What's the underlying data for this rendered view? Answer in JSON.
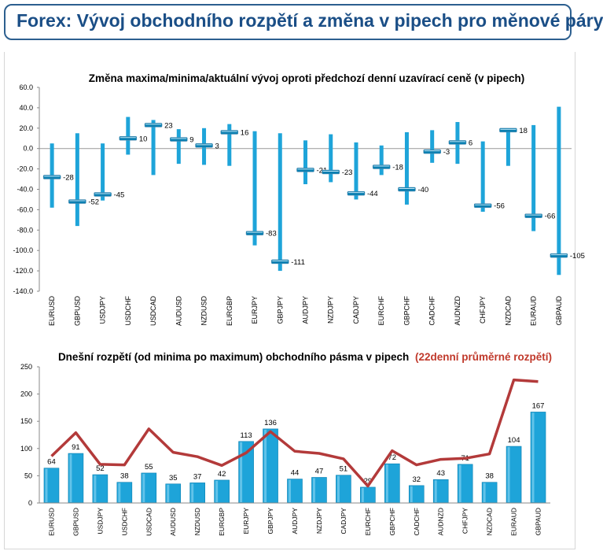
{
  "header": {
    "title": "Forex: Vývoj obchodního rozpětí a změna v pipech pro měnové páry"
  },
  "colors": {
    "header_border": "#2c5f8f",
    "header_text": "#1a4e86",
    "bar": "#1ea4d9",
    "bar_dark": "#0b7fb1",
    "line": "#b33a3a",
    "accent_red": "#c0392b"
  },
  "chart_data": [
    {
      "type": "floating-range",
      "title": "Změna maxima/minima/aktuální vývoj oproti předchozí denní uzavírací ceně (v pipech)",
      "categories": [
        "EURUSD",
        "GBPUSD",
        "USDJPY",
        "USDCHF",
        "USDCAD",
        "AUDUSD",
        "NZDUSD",
        "EURGBP",
        "EURJPY",
        "GBPJPY",
        "AUDJPY",
        "NZDJPY",
        "CADJPY",
        "EURCHF",
        "GBPCHF",
        "CADCHF",
        "AUDNZD",
        "CHFJPY",
        "NZDCAD",
        "EURAUD",
        "GBPAUD"
      ],
      "high": [
        5,
        15,
        5,
        31,
        28,
        19,
        20,
        24,
        17,
        15,
        8,
        14,
        6,
        3,
        16,
        18,
        26,
        7,
        19,
        23,
        41
      ],
      "low": [
        -58,
        -76,
        -51,
        -6,
        -26,
        -15,
        -16,
        -17,
        -95,
        -120,
        -35,
        -33,
        -50,
        -26,
        -55,
        -14,
        -15,
        -62,
        -17,
        -81,
        -124
      ],
      "current": [
        -28,
        -52,
        -45,
        10,
        23,
        9,
        3,
        16,
        -83,
        -111,
        -21,
        -23,
        -44,
        -18,
        -40,
        -3,
        6,
        -56,
        18,
        -66,
        -105
      ],
      "ylim": [
        -140,
        60
      ],
      "yticks": [
        "60.0",
        "40.0",
        "20.0",
        "0.0",
        "-20.0",
        "-40.0",
        "-60.0",
        "-80.0",
        "-100.0",
        "-120.0",
        "-140.0"
      ]
    },
    {
      "type": "bar+line",
      "title": "Dnešní rozpětí (od minima po maximum) obchodního pásma v pipech",
      "title_suffix": "(22denní průměrné rozpětí)",
      "categories": [
        "EURUSD",
        "GBPUSD",
        "USDJPY",
        "USDCHF",
        "USDCAD",
        "AUDUSD",
        "NZDUSD",
        "EURGBP",
        "EURJPY",
        "GBPJPY",
        "AUDJPY",
        "NZDJPY",
        "CADJPY",
        "EURCHF",
        "GBPCHF",
        "CADCHF",
        "AUDNZD",
        "CHFJPY",
        "NZDCAD",
        "EURAUD",
        "GBPAUD"
      ],
      "bars": [
        64,
        91,
        52,
        38,
        55,
        35,
        37,
        42,
        113,
        136,
        44,
        47,
        51,
        29,
        72,
        32,
        43,
        71,
        38,
        104,
        167
      ],
      "line": [
        86,
        129,
        71,
        70,
        136,
        93,
        85,
        69,
        92,
        131,
        95,
        91,
        81,
        31,
        96,
        70,
        80,
        82,
        90,
        226,
        223
      ],
      "ylim": [
        0,
        250
      ],
      "yticks": [
        "250",
        "200",
        "150",
        "100",
        "50",
        "0"
      ]
    }
  ]
}
